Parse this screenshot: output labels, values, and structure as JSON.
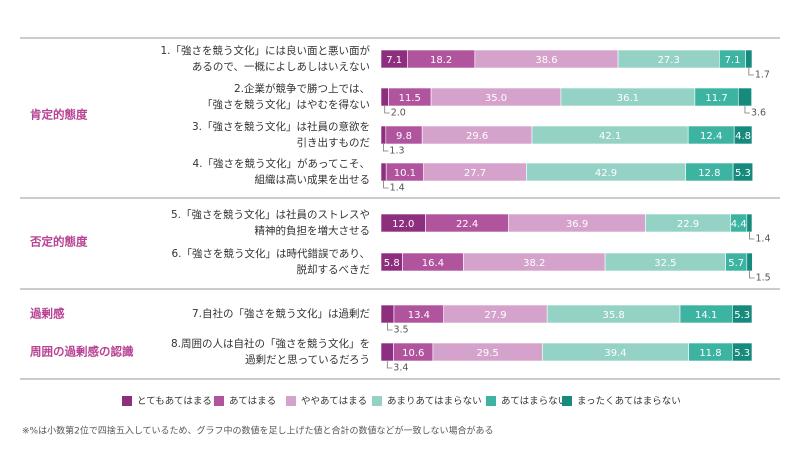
{
  "chart_data": {
    "type": "stacked-bar-horizontal",
    "groups": [
      "肯定的態度",
      "否定的態度",
      "過剰感",
      "周囲の過剰感の認識"
    ],
    "categories": [
      [
        "1.「強さを競う文化」には良い面と悪い面が",
        "あるので、一概によしあしはいえない"
      ],
      [
        "2.企業が競争で勝つ上では、",
        "「強さを競う文化」はやむを得ない"
      ],
      [
        "3.「強さを競う文化」は社員の意欲を",
        "引き出すものだ"
      ],
      [
        "4.「強さを競う文化」があってこそ、",
        "組織は高い成果を出せる"
      ],
      [
        "5.「強さを競う文化」は社員のストレスや",
        "精神的負担を増大させる"
      ],
      [
        "6.「強さを競う文化」は時代錯誤であり、",
        "脱却するべきだ"
      ],
      [
        "7.自社の「強さを競う文化」は過剰だ"
      ],
      [
        "8.周囲の人は自社の「強さを競う文化」を",
        "過剰だと思っているだろう"
      ]
    ],
    "series": [
      {
        "name": "とてもあてはまる",
        "color": "#8e2e7f",
        "values": [
          7.1,
          2.0,
          1.3,
          1.4,
          12.0,
          5.8,
          3.5,
          3.4
        ],
        "value_labels": [
          "7.1",
          "2.0",
          "1.3",
          "1.4",
          "12.0",
          "5.8",
          "3.5",
          "3.4"
        ]
      },
      {
        "name": "あてはまる",
        "color": "#b0549e",
        "values": [
          18.2,
          11.5,
          9.8,
          10.1,
          22.4,
          16.4,
          13.4,
          10.6
        ],
        "value_labels": [
          "18.2",
          "11.5",
          "9.8",
          "10.1",
          "22.4",
          "16.4",
          "13.4",
          "10.6"
        ]
      },
      {
        "name": "ややあてはまる",
        "color": "#d5a2cc",
        "values": [
          38.6,
          35.0,
          29.6,
          27.7,
          36.9,
          38.2,
          27.9,
          29.5
        ],
        "value_labels": [
          "38.6",
          "35.0",
          "29.6",
          "27.7",
          "36.9",
          "38.2",
          "27.9",
          "29.5"
        ]
      },
      {
        "name": "あまりあてはまらない",
        "color": "#93d2c5",
        "values": [
          27.3,
          36.1,
          42.1,
          42.9,
          22.9,
          32.5,
          35.8,
          39.4
        ],
        "value_labels": [
          "27.3",
          "36.1",
          "42.1",
          "42.9",
          "22.9",
          "32.5",
          "35.8",
          "39.4"
        ]
      },
      {
        "name": "あてはまらない",
        "color": "#3db3a2",
        "values": [
          7.1,
          11.7,
          12.4,
          12.8,
          4.4,
          5.7,
          14.1,
          11.8
        ],
        "value_labels": [
          "7.1",
          "11.7",
          "12.4",
          "12.8",
          "4.4",
          "5.7",
          "14.1",
          "11.8"
        ]
      },
      {
        "name": "まったくあてはまらない",
        "color": "#168a7c",
        "values": [
          1.7,
          3.6,
          4.8,
          5.3,
          1.4,
          1.5,
          5.3,
          5.3
        ],
        "value_labels": [
          "1.7",
          "3.6",
          "4.8",
          "5.3",
          "1.4",
          "1.5",
          "5.3",
          "5.3"
        ]
      }
    ],
    "note": "※%は小数第2位で四捨五入しているため、グラフ中の数値を足し上げた値と合計の数値などが一致しない場合がある"
  }
}
